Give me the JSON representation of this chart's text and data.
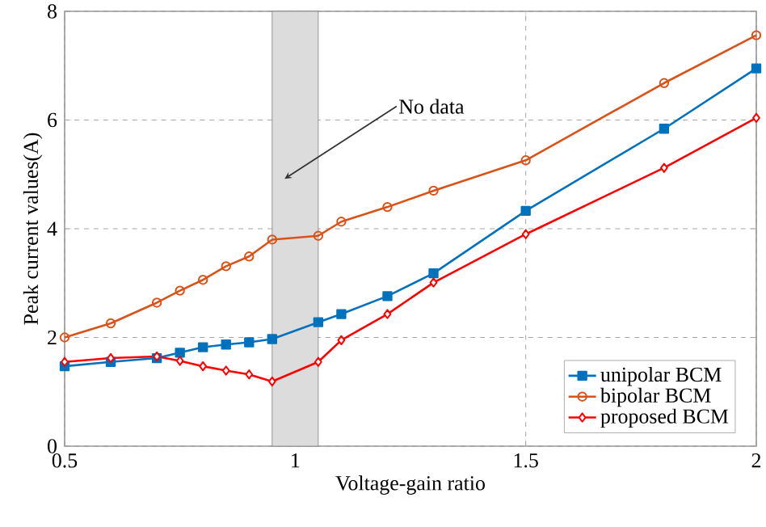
{
  "chart_data": {
    "type": "line",
    "xlabel": "Voltage-gain ratio",
    "ylabel": "Peak current values(A)",
    "x": [
      0.5,
      0.6,
      0.7,
      0.75,
      0.8,
      0.85,
      0.9,
      0.95,
      1.05,
      1.1,
      1.2,
      1.3,
      1.5,
      1.8,
      2.0
    ],
    "series": [
      {
        "name": "unipolar BCM",
        "color": "#0072bd",
        "marker": "square",
        "values": [
          1.47,
          1.55,
          1.62,
          1.72,
          1.82,
          1.87,
          1.91,
          1.97,
          2.28,
          2.43,
          2.76,
          3.18,
          4.33,
          5.84,
          6.95
        ]
      },
      {
        "name": "bipolar BCM",
        "color": "#d95319",
        "marker": "circle",
        "values": [
          2.0,
          2.26,
          2.64,
          2.86,
          3.06,
          3.31,
          3.49,
          3.8,
          3.87,
          4.13,
          4.4,
          4.7,
          5.26,
          6.68,
          7.56
        ]
      },
      {
        "name": "proposed BCM",
        "color": "#ff0000",
        "marker": "diamond",
        "values": [
          1.55,
          1.62,
          1.65,
          1.57,
          1.47,
          1.39,
          1.32,
          1.19,
          1.55,
          1.95,
          2.43,
          3.01,
          3.9,
          5.12,
          6.04
        ]
      }
    ],
    "xlim": [
      0.5,
      2
    ],
    "xticks": [
      0.5,
      1,
      1.5,
      2
    ],
    "ylim": [
      0,
      8
    ],
    "yticks": [
      0,
      2,
      4,
      6,
      8
    ],
    "bands": [
      {
        "axis": "x",
        "from": 0.95,
        "to": 1.05,
        "color": "#dcdcdc"
      }
    ],
    "annotations": [
      "No data"
    ],
    "grid": true,
    "legend": "bottom right",
    "line_style": "solid"
  }
}
